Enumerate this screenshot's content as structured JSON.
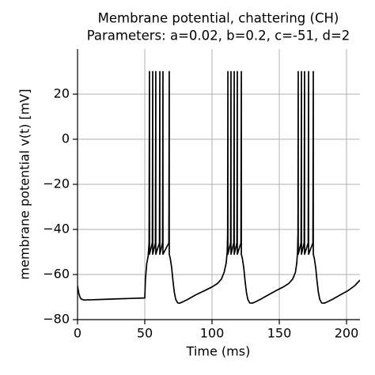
{
  "chart_data": {
    "type": "line",
    "title": "Membrane potential, chattering (CH)",
    "subtitle": "Parameters: a=0.02, b=0.2, c=-51, d=2",
    "xlabel": "Time (ms)",
    "ylabel": "membrane potential v(t) [mV]",
    "xlim": [
      0,
      210
    ],
    "ylim": [
      -80,
      40
    ],
    "xticks": [
      0,
      50,
      100,
      150,
      200
    ],
    "yticks": [
      {
        "value": -80,
        "label": "−80"
      },
      {
        "value": -60,
        "label": "−60"
      },
      {
        "value": -40,
        "label": "−40"
      },
      {
        "value": -20,
        "label": "−20"
      },
      0,
      20
    ],
    "grid": true,
    "x": [
      0,
      1,
      2,
      3,
      5,
      10,
      20,
      30,
      40,
      50,
      50.5,
      51.5,
      52.5,
      53.2,
      53.5,
      53.5,
      55.6,
      55.9,
      55.9,
      57.9,
      58.2,
      58.2,
      60.9,
      61.2,
      61.2,
      63.2,
      63.5,
      63.5,
      67.9,
      68.2,
      68.2,
      69,
      70,
      71,
      72,
      73,
      74.5,
      76,
      78,
      82,
      88,
      95,
      100,
      104,
      107,
      109,
      110.5,
      111.3,
      111.6,
      111.8,
      111.8,
      113.8,
      114.1,
      114.1,
      116.2,
      116.5,
      116.5,
      118.5,
      118.8,
      118.8,
      121.5,
      121.8,
      121.8,
      122.6,
      123.6,
      124.6,
      125.6,
      126.6,
      128,
      130,
      132,
      136,
      142,
      148,
      153,
      157,
      160,
      162,
      163,
      163.6,
      163.9,
      164.1,
      164.1,
      166.2,
      166.5,
      166.5,
      168.5,
      168.8,
      168.8,
      171.5,
      171.8,
      171.8,
      175,
      175.3,
      175.3,
      176.1,
      177.1,
      178.1,
      179.1,
      180.1,
      181.5,
      183.5,
      185.5,
      189.5,
      195.5,
      201.5,
      206,
      210
    ],
    "series": [
      {
        "color": "#000000",
        "values": [
          -65,
          -68.5,
          -70.3,
          -71,
          -71.3,
          -71.2,
          -71,
          -70.8,
          -70.6,
          -70.4,
          -62,
          -55,
          -52,
          -46,
          30,
          -51,
          -46,
          30,
          -51,
          -46,
          30,
          -51,
          -46,
          30,
          -51,
          -46,
          30,
          -51,
          -46,
          30,
          -51,
          -53,
          -57,
          -63,
          -68,
          -71,
          -72.6,
          -72.7,
          -72.2,
          -71,
          -69,
          -67,
          -65.5,
          -64,
          -62,
          -59,
          -55,
          -50,
          -42,
          30,
          -51,
          -46,
          30,
          -51,
          -46,
          30,
          -51,
          -46,
          30,
          -51,
          -46,
          30,
          -51,
          -53,
          -57,
          -63,
          -68,
          -71,
          -72.6,
          -72.7,
          -72.2,
          -71,
          -69,
          -67,
          -65.5,
          -64,
          -62,
          -59,
          -55,
          -50,
          -42,
          30,
          -51,
          -46,
          30,
          -51,
          -46,
          30,
          -51,
          -46,
          30,
          -51,
          -46,
          30,
          -51,
          -53,
          -57,
          -63,
          -68,
          -71,
          -72.6,
          -72.7,
          -72.2,
          -71,
          -69,
          -67,
          -65,
          -62.5
        ]
      }
    ]
  }
}
